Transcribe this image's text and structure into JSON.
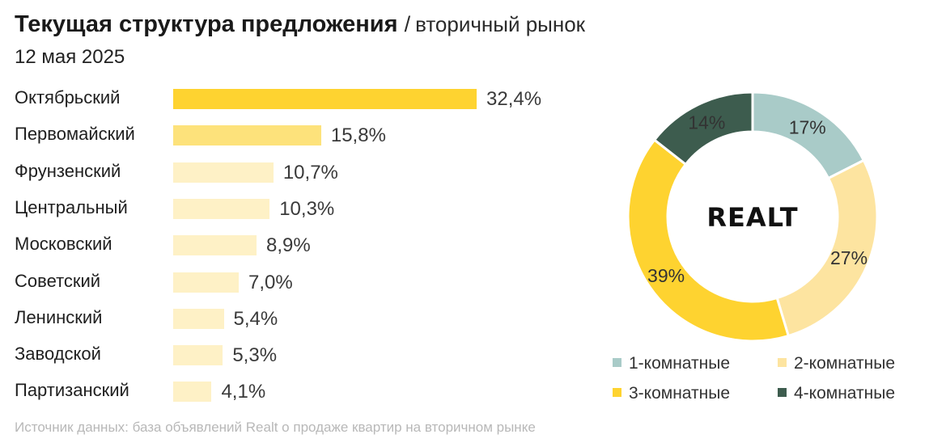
{
  "header": {
    "title": "Текущая структура предложения",
    "separator": "/",
    "subtitle": "вторичный рынок",
    "date": "12 мая 2025"
  },
  "chart_data": [
    {
      "type": "bar",
      "orientation": "horizontal",
      "categories": [
        "Октябрьский",
        "Первомайский",
        "Фрунзенский",
        "Центральный",
        "Московский",
        "Советский",
        "Ленинский",
        "Заводской",
        "Партизанский"
      ],
      "values": [
        32.4,
        15.8,
        10.7,
        10.3,
        8.9,
        7.0,
        5.4,
        5.3,
        4.1
      ],
      "value_labels": [
        "32,4%",
        "15,8%",
        "10,7%",
        "10,3%",
        "8,9%",
        "7,0%",
        "5,4%",
        "5,3%",
        "4,1%"
      ],
      "colors": [
        "#fed330",
        "#fde27b",
        "#fef1c6",
        "#fef1c6",
        "#fef1c6",
        "#fef1c6",
        "#fef1c6",
        "#fef1c6",
        "#fef1c6"
      ],
      "xlim": [
        0,
        32.4
      ]
    },
    {
      "type": "pie",
      "donut": true,
      "center_logo": "REALT",
      "categories": [
        "1-комнатные",
        "2-комнатные",
        "3-комнатные",
        "4-комнатные"
      ],
      "values": [
        17,
        27,
        39,
        14
      ],
      "value_labels": [
        "17%",
        "27%",
        "39%",
        "14%"
      ],
      "colors": [
        "#a9cbc8",
        "#fde4a0",
        "#fed330",
        "#3d5c4e"
      ],
      "legend_placement": "bottom"
    }
  ],
  "footer": {
    "source": "Источник данных: база объявлений Realt о продаже квартир на вторичном рынке"
  }
}
